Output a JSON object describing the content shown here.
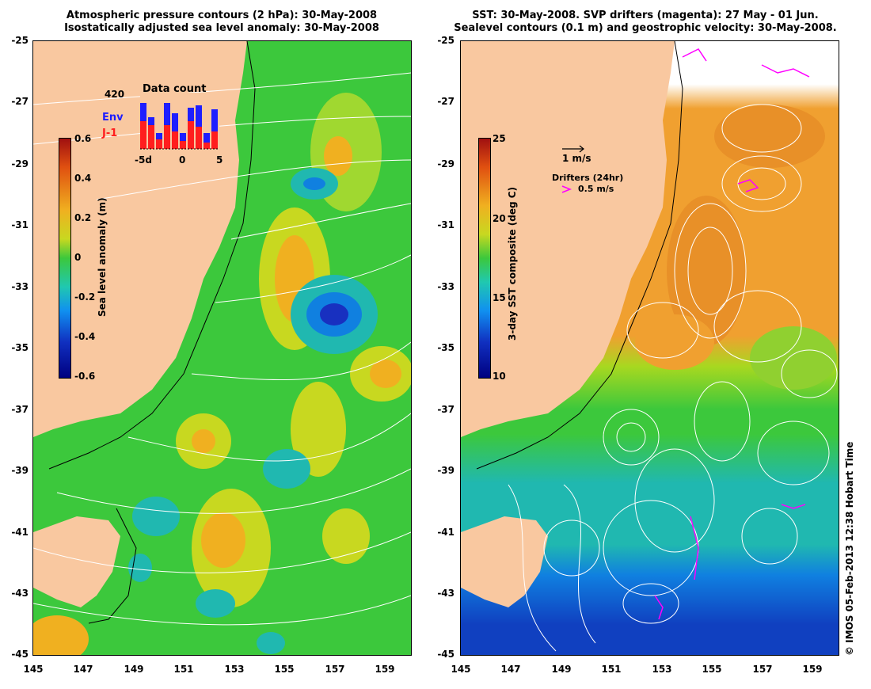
{
  "left_panel": {
    "title_line1": "Atmospheric pressure contours (2 hPa): 30-May-2008",
    "title_line2": "Isostatically adjusted sea level anomaly: 30-May-2008",
    "y_ticks": [
      "-25",
      "-27",
      "-29",
      "-31",
      "-33",
      "-35",
      "-37",
      "-39",
      "-41",
      "-43",
      "-45"
    ],
    "x_ticks": [
      "145",
      "147",
      "149",
      "151",
      "153",
      "155",
      "157",
      "159"
    ],
    "colorbar": {
      "label": "Sea level anomaly (m)",
      "ticks": [
        "0.6",
        "0.4",
        "0.2",
        "0",
        "-0.2",
        "-0.4",
        "-0.6"
      ]
    },
    "data_count": {
      "title": "Data count",
      "max_label": "420",
      "legend_env": "Env",
      "legend_j1": "J-1",
      "x_ticks": [
        "-5d",
        "0",
        "5"
      ],
      "env_color": "#1e1eff",
      "j1_color": "#ff1e1e"
    }
  },
  "right_panel": {
    "title_line1": "SST: 30-May-2008. SVP drifters (magenta): 27 May - 01 Jun.",
    "title_line2": "Sealevel contours (0.1 m) and geostrophic velocity: 30-May-2008.",
    "y_ticks": [
      "-25",
      "-27",
      "-29",
      "-31",
      "-33",
      "-35",
      "-37",
      "-39",
      "-41",
      "-43",
      "-45"
    ],
    "x_ticks": [
      "145",
      "147",
      "149",
      "151",
      "153",
      "155",
      "157",
      "159"
    ],
    "colorbar": {
      "label": "3-day SST composite (deg C)",
      "ticks": [
        "25",
        "20",
        "15",
        "10"
      ]
    },
    "velocity_key": "1 m/s",
    "drifters_title": "Drifters (24hr)",
    "drifters_key": "0.5 m/s",
    "drifter_color": "#ff00ff"
  },
  "credit": "© IMOS 05-Feb-2013 12:38 Hobart Time",
  "colors": {
    "land": "#f9c8a0",
    "sla_green": "#3cc83c",
    "sst_orange": "#f0a030"
  }
}
